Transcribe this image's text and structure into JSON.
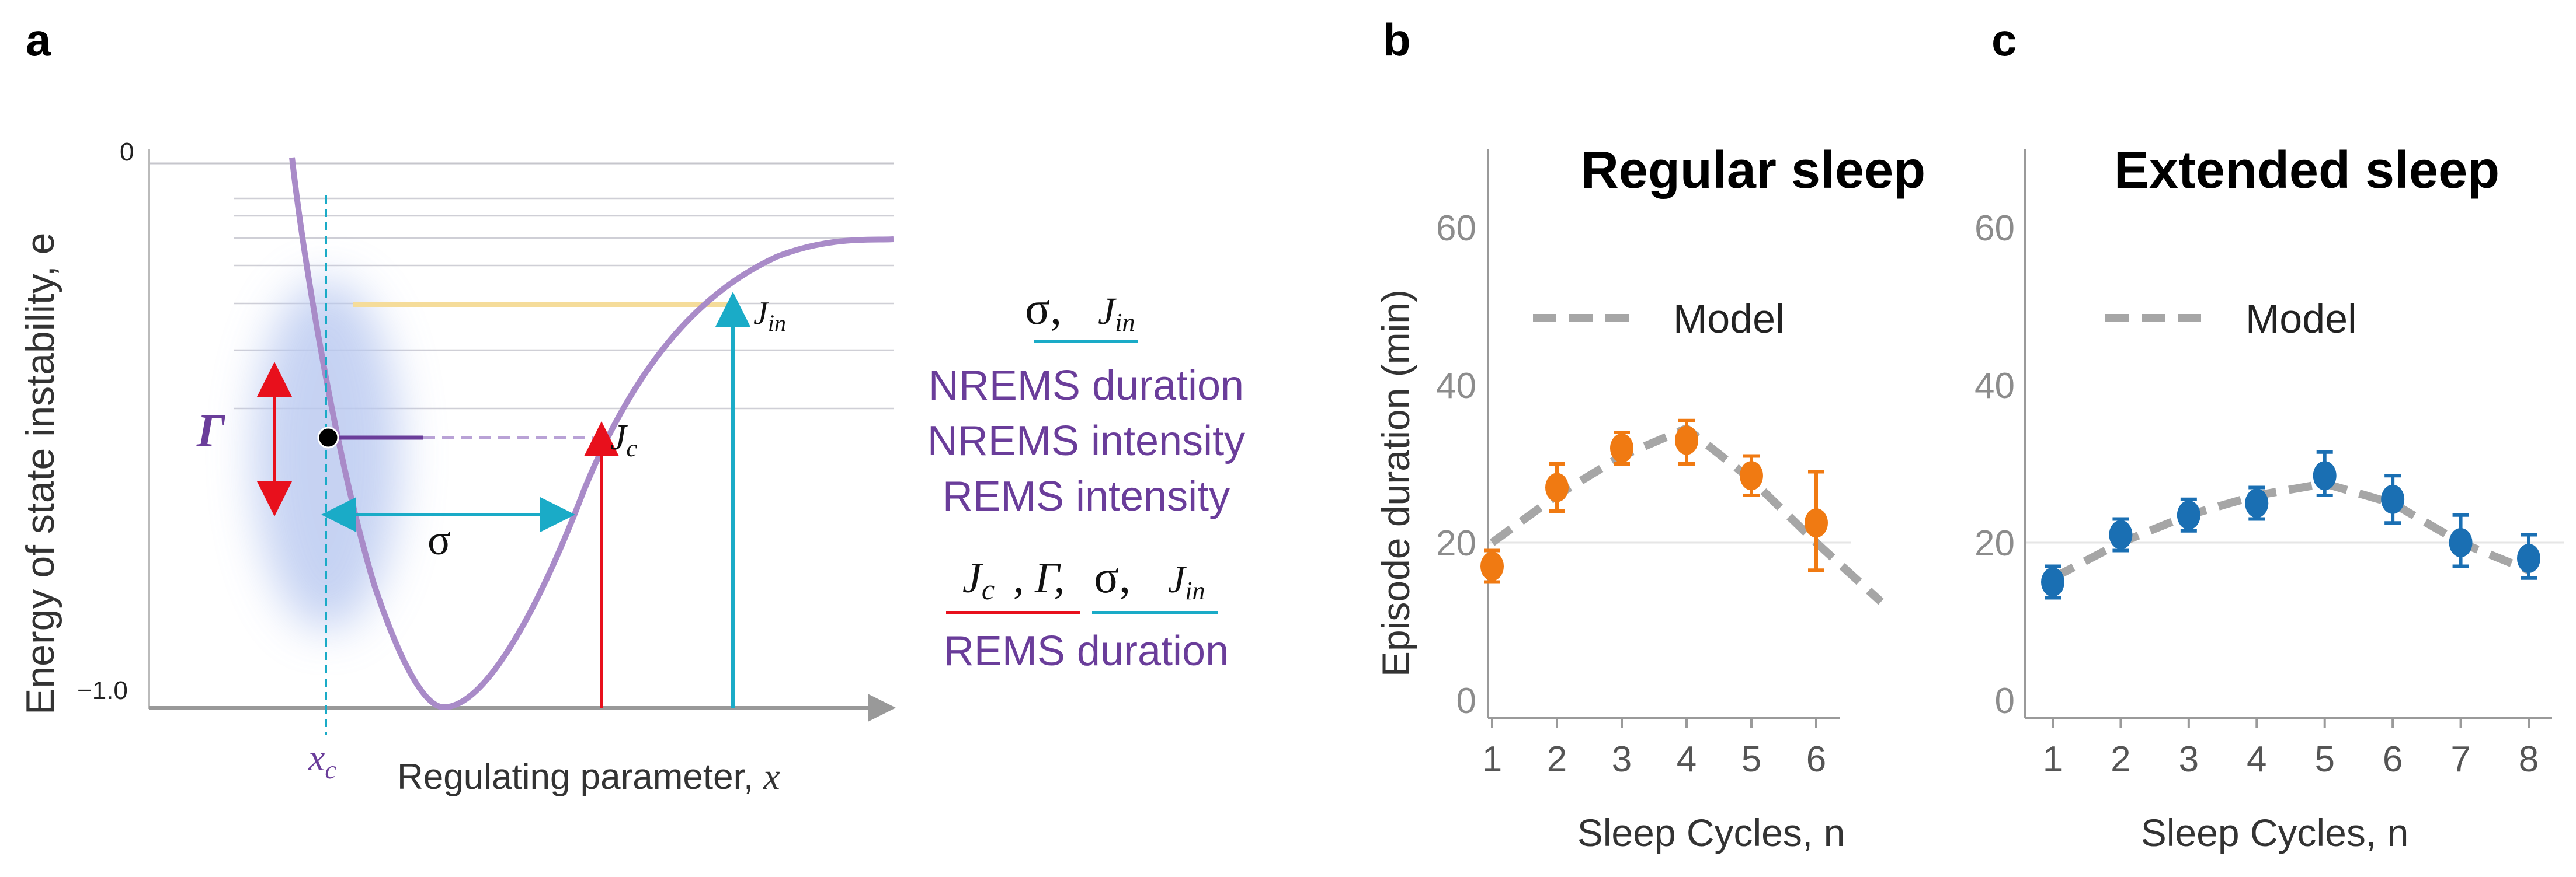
{
  "panels": {
    "a": {
      "letter": "a",
      "y_axis_label": "Energy of state instability, e",
      "y_tick_top": "0",
      "y_tick_bottom": "−1.0",
      "x_axis_label": "Regulating parameter, ",
      "x_axis_symbol": "x",
      "xc_label": "x",
      "xc_sub": "c",
      "gamma_label": "Γ",
      "sigma_label": "σ",
      "jc_label": "J",
      "jc_sub": "c",
      "jin_label": "J",
      "jin_sub": "in",
      "colors": {
        "curve": "#a98bc8",
        "red": "#e8101c",
        "cyan": "#1aabc7",
        "yellow": "#f5dc9a",
        "blur": "#b8c8f0"
      }
    },
    "legend": {
      "group1_sigma": "σ,",
      "group1_j": "J",
      "group1_j_sub": "in",
      "lines1": [
        "NREMS duration",
        "NREMS intensity",
        "REMS intensity"
      ],
      "group2_jc": "J",
      "group2_jc_sub": "c",
      "group2_gamma": ", Γ,",
      "group2_sigma": "σ,",
      "group2_j": "J",
      "group2_j_sub": "in",
      "lines2": [
        "REMS duration"
      ]
    },
    "b": {
      "letter": "b"
    },
    "c": {
      "letter": "c"
    }
  },
  "chart_data": [
    {
      "type": "scatter",
      "panel": "b",
      "title": "Regular sleep",
      "xlabel": "Sleep Cycles, n",
      "ylabel": "Episode duration (min)",
      "x": [
        1,
        2,
        3,
        4,
        5,
        6
      ],
      "xticks": [
        1,
        2,
        3,
        4,
        5,
        6
      ],
      "yticks": [
        0,
        20,
        40,
        60
      ],
      "ylim": [
        0,
        70
      ],
      "xlim": [
        0.5,
        7.1
      ],
      "color": "#f07a12",
      "series": [
        {
          "values": [
            17,
            27,
            32,
            33,
            28.5,
            22.5
          ],
          "err_low": [
            2,
            3,
            2,
            3,
            2.5,
            6
          ],
          "err_high": [
            2,
            3,
            2,
            2.5,
            2.5,
            6.5
          ]
        }
      ],
      "model": {
        "label": "Model",
        "x": [
          1,
          2,
          3,
          4,
          5,
          6,
          7
        ],
        "y": [
          20,
          26,
          31,
          34.5,
          28,
          20,
          12.5
        ]
      },
      "legend_position": "top-left"
    },
    {
      "type": "scatter",
      "panel": "c",
      "title": "Extended sleep",
      "xlabel": "Sleep Cycles, n",
      "ylabel": "",
      "x": [
        1,
        2,
        3,
        4,
        5,
        6,
        7,
        8
      ],
      "xticks": [
        1,
        2,
        3,
        4,
        5,
        6,
        7,
        8
      ],
      "yticks": [
        0,
        20,
        40,
        60
      ],
      "ylim": [
        0,
        70
      ],
      "xlim": [
        0.5,
        8.3
      ],
      "color": "#1a6fb3",
      "series": [
        {
          "values": [
            15,
            21,
            23.5,
            25,
            28.5,
            25.5,
            20,
            18
          ],
          "err_low": [
            2,
            2,
            2,
            2,
            2.5,
            3,
            3,
            2.5
          ],
          "err_high": [
            2,
            2,
            2,
            2,
            3,
            3,
            3.5,
            3
          ]
        }
      ],
      "model": {
        "label": "Model",
        "x": [
          1,
          2,
          3,
          4,
          5,
          6,
          7,
          8
        ],
        "y": [
          15.5,
          20,
          23.5,
          26,
          27.5,
          25,
          20,
          16.5
        ]
      },
      "legend_position": "top-left"
    }
  ]
}
